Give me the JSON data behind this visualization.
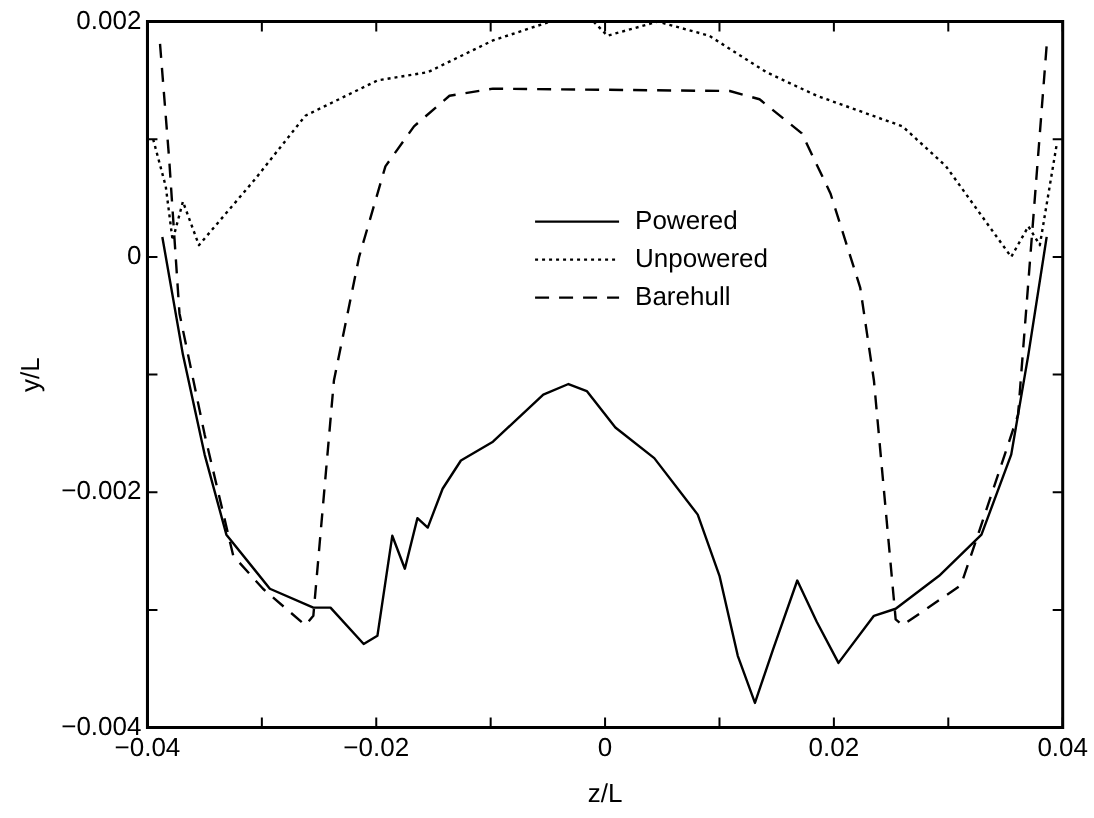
{
  "chart_data": {
    "type": "line",
    "xlabel": "z/L",
    "ylabel": "y/L",
    "legend": "top",
    "grid": false,
    "marker": "none",
    "xlim": [
      -0.04,
      0.04
    ],
    "ylim": [
      -0.004,
      0.002
    ],
    "xticks": [
      -0.04,
      {
        "value": -0.03,
        "label": null
      },
      -0.02,
      {
        "value": -0.01,
        "label": null
      },
      0,
      {
        "value": 0.01,
        "label": null
      },
      0.02,
      {
        "value": 0.03,
        "label": null
      },
      0.04
    ],
    "yticks": [
      -0.004,
      {
        "value": -0.003,
        "label": null
      },
      -0.002,
      {
        "value": -0.001,
        "label": null
      },
      0,
      {
        "value": 0.001,
        "label": null
      },
      0.002
    ],
    "series": [
      {
        "name": "Powered",
        "color": "#000000",
        "line_style": "solid",
        "x": [
          -0.0387,
          -0.0369,
          -0.035,
          -0.0331,
          -0.0293,
          -0.0255,
          -0.024,
          -0.0211,
          -0.0199,
          -0.0186,
          -0.0175,
          -0.0164,
          -0.0155,
          -0.0142,
          -0.0126,
          -0.0098,
          -0.0054,
          -0.0032,
          -0.0016,
          0.0009,
          0.0043,
          0.0081,
          0.01,
          0.0116,
          0.0131,
          0.0147,
          0.0168,
          0.0185,
          0.0204,
          0.0235,
          0.0254,
          0.0292,
          0.0329,
          0.0355,
          0.037,
          0.0386
        ],
        "values": [
          0.00017,
          -0.00083,
          -0.00168,
          -0.00236,
          -0.00282,
          -0.00298,
          -0.00298,
          -0.00329,
          -0.00322,
          -0.00237,
          -0.00265,
          -0.00222,
          -0.0023,
          -0.00197,
          -0.00173,
          -0.00157,
          -0.00117,
          -0.00108,
          -0.00114,
          -0.00145,
          -0.00171,
          -0.00219,
          -0.00271,
          -0.00339,
          -0.00379,
          -0.00333,
          -0.00275,
          -0.0031,
          -0.00345,
          -0.00305,
          -0.00299,
          -0.00271,
          -0.00236,
          -0.00168,
          -0.00083,
          0.00017
        ]
      },
      {
        "name": "Unpowered",
        "color": "#000000",
        "line_style": "dotted",
        "x": [
          -0.0395,
          -0.0384,
          -0.0378,
          -0.0369,
          -0.0355,
          -0.0306,
          -0.0262,
          -0.0199,
          -0.0155,
          -0.0098,
          -0.0048,
          -0.001,
          0.0002,
          0.0046,
          0.0091,
          0.0141,
          0.0185,
          0.026,
          0.0298,
          0.0355,
          0.037,
          0.038,
          0.0395
        ],
        "values": [
          0.001,
          0.0006,
          0.00014,
          0.00047,
          0.0001,
          0.00066,
          0.0012,
          0.0015,
          0.00157,
          0.00184,
          0.002,
          0.002,
          0.00188,
          0.002,
          0.00188,
          0.00157,
          0.00137,
          0.00111,
          0.00077,
          0,
          0.00026,
          0.0001,
          0.00097
        ]
      },
      {
        "name": "Barehull",
        "color": "#000000",
        "line_style": "dashed",
        "x": [
          -0.0389,
          -0.0381,
          -0.0372,
          -0.035,
          -0.0325,
          -0.0299,
          -0.0262,
          -0.0255,
          -0.0237,
          -0.0215,
          -0.0192,
          -0.0167,
          -0.0136,
          -0.0098,
          0.0109,
          0.0135,
          0.0172,
          0.0197,
          0.0223,
          0.0235,
          0.0254,
          0.026,
          0.0311,
          0.0326,
          0.0361,
          0.0386
        ],
        "values": [
          0.00181,
          0.00083,
          -0.00048,
          -0.00151,
          -0.00254,
          -0.00282,
          -0.00313,
          -0.00305,
          -0.00105,
          0,
          0.00077,
          0.00111,
          0.00137,
          0.00143,
          0.00141,
          0.00134,
          0.00105,
          0.00054,
          -0.00026,
          -0.00105,
          -0.00308,
          -0.00313,
          -0.00279,
          -0.00236,
          -0.00134,
          0.0018
        ]
      }
    ]
  }
}
